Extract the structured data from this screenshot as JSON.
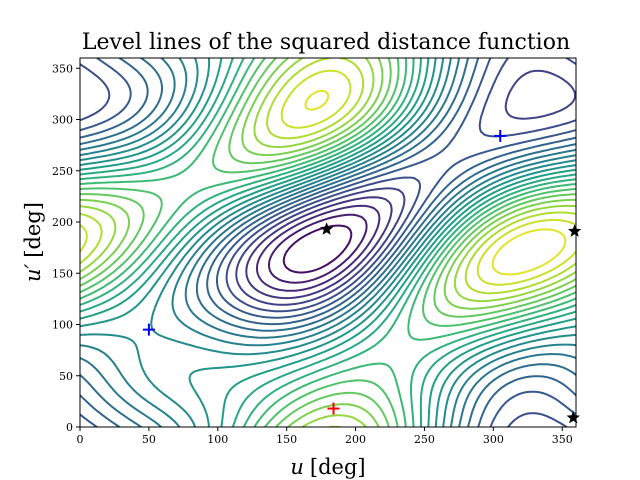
{
  "chart_data": {
    "type": "contour",
    "title": "Level lines of the squared distance function",
    "xlabel_var": "u",
    "xlabel_unit": "[deg]",
    "ylabel_var": "u′",
    "ylabel_unit": "[deg]",
    "xlim": [
      0,
      360
    ],
    "ylim": [
      0,
      360
    ],
    "xticks": [
      "0",
      "50",
      "100",
      "150",
      "200",
      "250",
      "300",
      "350"
    ],
    "yticks": [
      "0",
      "50",
      "100",
      "150",
      "200",
      "250",
      "300",
      "350"
    ],
    "colormap": "viridis",
    "grid": false,
    "levels": 25,
    "markers": [
      {
        "type": "minimum",
        "symbol": "+",
        "x": 50,
        "y": 95,
        "color": "#0000ff"
      },
      {
        "type": "minimum",
        "symbol": "+",
        "x": 305,
        "y": 284,
        "color": "#0000ff"
      },
      {
        "type": "maximum",
        "symbol": "+",
        "x": 184,
        "y": 18,
        "color": "#ff0000"
      },
      {
        "type": "saddle",
        "symbol": "star",
        "x": 179,
        "y": 193,
        "color": "#000000"
      },
      {
        "type": "saddle",
        "symbol": "star",
        "x": 359,
        "y": 191,
        "color": "#000000"
      },
      {
        "type": "saddle",
        "symbol": "star",
        "x": 358,
        "y": 9,
        "color": "#000000"
      }
    ]
  }
}
